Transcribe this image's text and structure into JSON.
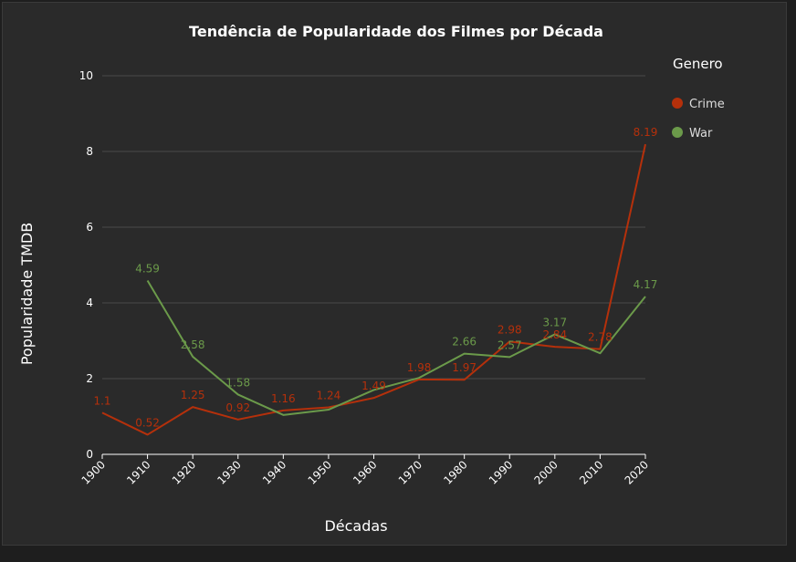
{
  "chart_data": {
    "type": "line",
    "title": "Tendência de Popularidade dos Filmes por Década",
    "xlabel": "Décadas",
    "ylabel": "Popularidade TMDB",
    "categories": [
      "1900",
      "1910",
      "1920",
      "1930",
      "1940",
      "1950",
      "1960",
      "1970",
      "1980",
      "1990",
      "2000",
      "2010",
      "2020"
    ],
    "ylim": [
      0,
      10
    ],
    "yticks": [
      "0",
      "2",
      "4",
      "6",
      "8",
      "10"
    ],
    "grid": true,
    "legend": {
      "title": "Genero",
      "position": "right"
    },
    "series": [
      {
        "name": "Crime",
        "color": "#b5300b",
        "values": [
          1.1,
          0.52,
          1.25,
          0.92,
          1.16,
          1.24,
          1.49,
          1.98,
          1.97,
          2.98,
          2.84,
          2.78,
          8.19
        ],
        "labels": [
          "1.1",
          "0.52",
          "1.25",
          "0.92",
          "1.16",
          "1.24",
          "1.49",
          "1.98",
          "1.97",
          "2.98",
          "2.84",
          "2.78",
          "8.19"
        ]
      },
      {
        "name": "War",
        "color": "#6b9a4a",
        "values": [
          null,
          4.59,
          2.58,
          1.58,
          1.04,
          1.18,
          1.7,
          2.02,
          2.66,
          2.57,
          3.17,
          2.67,
          4.17
        ],
        "labels": [
          null,
          "4.59",
          "2.58",
          "1.58",
          null,
          null,
          null,
          null,
          "2.66",
          "2.57",
          "3.17",
          null,
          "4.17"
        ]
      }
    ]
  }
}
